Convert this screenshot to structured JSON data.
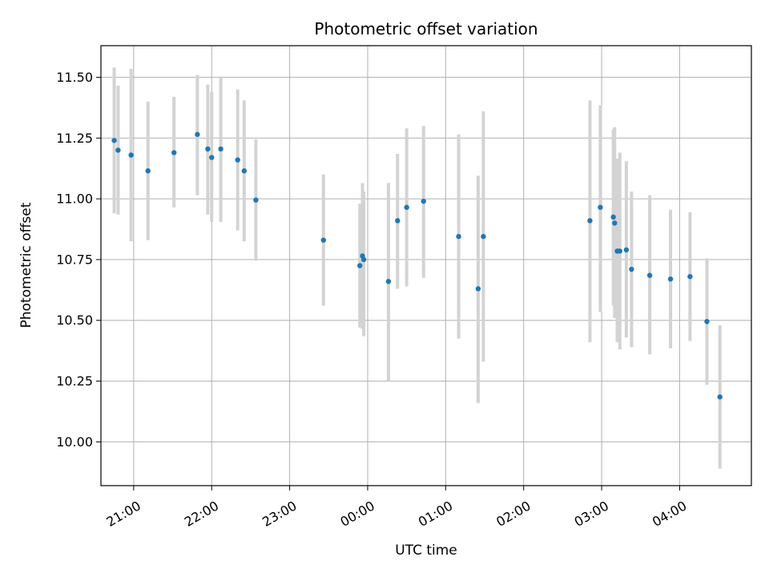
{
  "chart_data": {
    "type": "scatter",
    "title": "Photometric offset variation",
    "xlabel": "UTC time",
    "ylabel": "Photometric offset",
    "grid": true,
    "x_ticks": [
      "21:00",
      "22:00",
      "23:00",
      "00:00",
      "01:00",
      "02:00",
      "03:00",
      "04:00"
    ],
    "x_tick_hours": [
      21,
      22,
      23,
      24,
      25,
      26,
      27,
      28
    ],
    "y_ticks": [
      "10.00",
      "10.25",
      "10.50",
      "10.75",
      "11.00",
      "11.25",
      "11.50"
    ],
    "y_tick_values": [
      10.0,
      10.25,
      10.5,
      10.75,
      11.0,
      11.25,
      11.5
    ],
    "xlim_hours": [
      20.58,
      28.92
    ],
    "ylim": [
      9.82,
      11.63
    ],
    "colors": {
      "point": "#1f77b4",
      "errorbar": "#d3d3d3",
      "grid": "#b0b0b0"
    },
    "points": [
      {
        "t": "20:45",
        "y": 11.24,
        "low": 10.94,
        "high": 11.54
      },
      {
        "t": "20:48",
        "y": 11.2,
        "low": 10.935,
        "high": 11.465
      },
      {
        "t": "20:58",
        "y": 11.18,
        "low": 10.825,
        "high": 11.535
      },
      {
        "t": "21:11",
        "y": 11.115,
        "low": 10.83,
        "high": 11.4
      },
      {
        "t": "21:31",
        "y": 11.19,
        "low": 10.965,
        "high": 11.42
      },
      {
        "t": "21:49",
        "y": 11.265,
        "low": 11.015,
        "high": 11.51
      },
      {
        "t": "21:57",
        "y": 11.205,
        "low": 10.935,
        "high": 11.47
      },
      {
        "t": "22:00",
        "y": 11.17,
        "low": 10.905,
        "high": 11.44
      },
      {
        "t": "22:07",
        "y": 11.205,
        "low": 10.905,
        "high": 11.5
      },
      {
        "t": "22:20",
        "y": 11.16,
        "low": 10.87,
        "high": 11.45
      },
      {
        "t": "22:25",
        "y": 11.115,
        "low": 10.825,
        "high": 11.405
      },
      {
        "t": "22:34",
        "y": 10.995,
        "low": 10.745,
        "high": 11.245
      },
      {
        "t": "23:26",
        "y": 10.83,
        "low": 10.56,
        "high": 11.1
      },
      {
        "t": "23:54",
        "y": 10.725,
        "low": 10.47,
        "high": 10.98
      },
      {
        "t": "23:56",
        "y": 10.765,
        "low": 10.465,
        "high": 11.065
      },
      {
        "t": "23:57",
        "y": 10.75,
        "low": 10.435,
        "high": 11.03
      },
      {
        "t": "00:16",
        "y": 10.66,
        "low": 10.25,
        "high": 11.065
      },
      {
        "t": "00:23",
        "y": 10.91,
        "low": 10.63,
        "high": 11.185
      },
      {
        "t": "00:30",
        "y": 10.965,
        "low": 10.64,
        "high": 11.29
      },
      {
        "t": "00:43",
        "y": 10.99,
        "low": 10.675,
        "high": 11.3
      },
      {
        "t": "01:10",
        "y": 10.845,
        "low": 10.425,
        "high": 11.265
      },
      {
        "t": "01:25",
        "y": 10.63,
        "low": 10.16,
        "high": 11.095
      },
      {
        "t": "01:29",
        "y": 10.845,
        "low": 10.33,
        "high": 11.36
      },
      {
        "t": "02:51",
        "y": 10.91,
        "low": 10.41,
        "high": 11.405
      },
      {
        "t": "02:59",
        "y": 10.965,
        "low": 10.535,
        "high": 11.385
      },
      {
        "t": "03:09",
        "y": 10.925,
        "low": 10.56,
        "high": 11.285
      },
      {
        "t": "03:10",
        "y": 10.9,
        "low": 10.51,
        "high": 11.295
      },
      {
        "t": "03:12",
        "y": 10.785,
        "low": 10.41,
        "high": 11.165
      },
      {
        "t": "03:14",
        "y": 10.785,
        "low": 10.38,
        "high": 11.19
      },
      {
        "t": "03:19",
        "y": 10.79,
        "low": 10.43,
        "high": 11.155
      },
      {
        "t": "03:23",
        "y": 10.71,
        "low": 10.39,
        "high": 11.03
      },
      {
        "t": "03:37",
        "y": 10.685,
        "low": 10.36,
        "high": 11.015
      },
      {
        "t": "03:53",
        "y": 10.67,
        "low": 10.385,
        "high": 10.955
      },
      {
        "t": "04:08",
        "y": 10.68,
        "low": 10.415,
        "high": 10.945
      },
      {
        "t": "04:21",
        "y": 10.495,
        "low": 10.235,
        "high": 10.755
      },
      {
        "t": "04:31",
        "y": 10.185,
        "low": 9.89,
        "high": 10.48
      }
    ]
  }
}
